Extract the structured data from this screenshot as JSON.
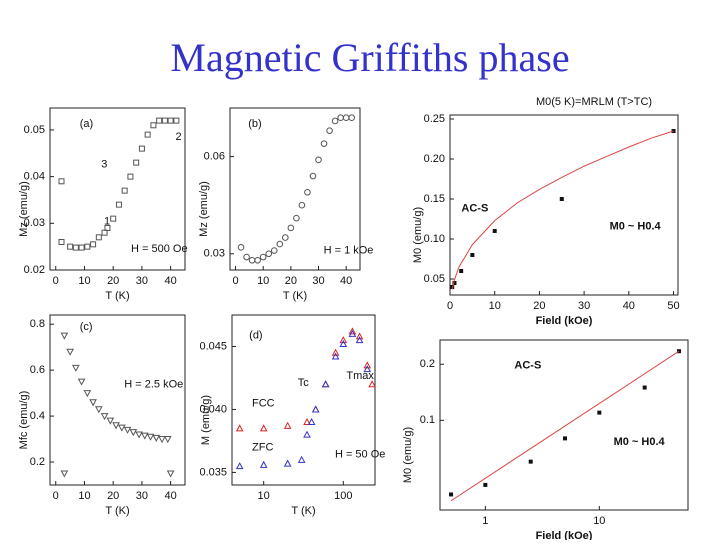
{
  "title": "Magnetic Griffiths phase",
  "chart_data": [
    {
      "type": "scatter",
      "xlabel": "T (K)",
      "ylabel": "Mz (emu/g)",
      "xlim": [
        -2,
        45
      ],
      "xticks": [
        0,
        10,
        20,
        30,
        40
      ],
      "ylim": [
        0.02,
        0.0547
      ],
      "yticks": [
        0.02,
        0.03,
        0.04,
        0.05
      ],
      "annotations": [
        "(a)",
        "1",
        "2",
        "3",
        "H = 500 Oe"
      ],
      "series": [
        {
          "marker": "square",
          "color": "#555555",
          "x": [
            2,
            2,
            5,
            7,
            9,
            11,
            13,
            15,
            17,
            18,
            20,
            22,
            24,
            26,
            28,
            30,
            32,
            34,
            36,
            38,
            40,
            42
          ],
          "values": [
            0.039,
            0.026,
            0.025,
            0.0248,
            0.0248,
            0.025,
            0.0255,
            0.027,
            0.028,
            0.029,
            0.031,
            0.034,
            0.037,
            0.04,
            0.043,
            0.046,
            0.049,
            0.051,
            0.052,
            0.052,
            0.052,
            0.052
          ]
        }
      ]
    },
    {
      "type": "scatter",
      "xlabel": "T (K)",
      "ylabel": "Mz (emu/g)",
      "xlim": [
        -2,
        45
      ],
      "xticks": [
        0,
        10,
        20,
        30,
        40
      ],
      "ylim": [
        0.025,
        0.075
      ],
      "yticks": [
        0.03,
        0.06
      ],
      "annotations": [
        "(b)",
        "H = 1 kOe"
      ],
      "series": [
        {
          "marker": "circle",
          "color": "#555555",
          "x": [
            2,
            4,
            6,
            8,
            10,
            12,
            14,
            16,
            18,
            20,
            22,
            24,
            26,
            28,
            30,
            32,
            34,
            36,
            38,
            40,
            42
          ],
          "values": [
            0.032,
            0.029,
            0.028,
            0.028,
            0.029,
            0.03,
            0.031,
            0.033,
            0.035,
            0.038,
            0.041,
            0.045,
            0.049,
            0.054,
            0.059,
            0.064,
            0.068,
            0.071,
            0.072,
            0.072,
            0.072
          ]
        }
      ]
    },
    {
      "type": "scatter",
      "xlabel": "T (K)",
      "ylabel": "Mfc (emu/g)",
      "xlim": [
        -2,
        45
      ],
      "xticks": [
        0,
        10,
        20,
        30,
        40
      ],
      "ylim": [
        0.1,
        0.84
      ],
      "yticks": [
        0.2,
        0.4,
        0.6,
        0.8
      ],
      "annotations": [
        "(c)",
        "H = 2.5 kOe"
      ],
      "series": [
        {
          "marker": "triangle-down",
          "color": "#555555",
          "x": [
            3,
            3,
            5,
            7,
            9,
            11,
            13,
            15,
            17,
            19,
            21,
            23,
            25,
            27,
            29,
            31,
            33,
            35,
            37,
            39,
            40
          ],
          "values": [
            0.75,
            0.15,
            0.68,
            0.61,
            0.55,
            0.5,
            0.46,
            0.43,
            0.4,
            0.38,
            0.36,
            0.35,
            0.34,
            0.33,
            0.32,
            0.315,
            0.31,
            0.305,
            0.3,
            0.3,
            0.15
          ]
        }
      ]
    },
    {
      "type": "scatter",
      "xlabel": "T (K)",
      "ylabel": "M (emu/g)",
      "xscale": "log",
      "xlim": [
        4,
        250
      ],
      "xticks": [
        10,
        100
      ],
      "ylim": [
        0.034,
        0.0475
      ],
      "yticks": [
        {
          "value": 0.035,
          "label": "0.035"
        },
        {
          "value": 0.04,
          "label": "0.040"
        },
        {
          "value": 0.045,
          "label": "0.045"
        }
      ],
      "annotations": [
        "(d)",
        "FCC",
        "ZFC",
        "Tc",
        "Tmax",
        "H = 50 Oe"
      ],
      "series": [
        {
          "marker": "triangle",
          "color": "#dd2222",
          "x": [
            5,
            10,
            20,
            35,
            45,
            60,
            80,
            100,
            130,
            160,
            200,
            230
          ],
          "values": [
            0.0385,
            0.0385,
            0.0387,
            0.039,
            0.04,
            0.042,
            0.0445,
            0.0455,
            0.0462,
            0.0458,
            0.0435,
            0.042
          ]
        },
        {
          "marker": "triangle",
          "color": "#3333cc",
          "x": [
            5,
            10,
            20,
            30,
            35,
            40,
            45,
            60,
            80,
            100,
            130,
            160,
            200
          ],
          "values": [
            0.0355,
            0.0356,
            0.0357,
            0.036,
            0.038,
            0.039,
            0.04,
            0.042,
            0.0442,
            0.0452,
            0.046,
            0.0455,
            0.0432
          ]
        }
      ]
    },
    {
      "type": "scatter",
      "title": "M0(5 K)=MRLM (T>TC)",
      "xlabel": "Field (kOe)",
      "ylabel": "M0 (emu/g)",
      "xlim": [
        0,
        51
      ],
      "xticks": [
        0,
        10,
        20,
        30,
        40,
        50
      ],
      "ylim": [
        0.03,
        0.255
      ],
      "yticks": [
        0.05,
        {
          "value": 0.1,
          "label": "0.10"
        },
        0.15,
        {
          "value": 0.2,
          "label": "0.20"
        },
        0.25
      ],
      "annotations": [
        "AC-S",
        "M0 ~ H0.4"
      ],
      "series": [
        {
          "marker": "dot",
          "color": "#111111",
          "x": [
            0.5,
            1,
            2.5,
            5,
            10,
            25,
            50
          ],
          "values": [
            0.04,
            0.045,
            0.06,
            0.08,
            0.11,
            0.15,
            0.235
          ]
        },
        {
          "marker": "line",
          "color": "#dd4444",
          "x": [
            0.5,
            1,
            2,
            5,
            10,
            15,
            20,
            25,
            30,
            35,
            40,
            45,
            50
          ],
          "values": [
            0.037,
            0.049,
            0.065,
            0.093,
            0.123,
            0.145,
            0.162,
            0.177,
            0.191,
            0.203,
            0.215,
            0.226,
            0.235
          ]
        }
      ]
    },
    {
      "type": "scatter",
      "xlabel": "Field (kOe)",
      "ylabel": "M0 (emu/g)",
      "xscale": "log",
      "yscale": "log",
      "xlim": [
        0.4,
        60
      ],
      "xticks": [
        1,
        10
      ],
      "ylim": [
        0.033,
        0.27
      ],
      "yticks": [
        0.1,
        0.2
      ],
      "annotations": [
        "AC-S",
        "M0 ~ H0.4"
      ],
      "series": [
        {
          "marker": "dot",
          "color": "#111111",
          "x": [
            0.5,
            1,
            2.5,
            5,
            10,
            25,
            50
          ],
          "values": [
            0.04,
            0.045,
            0.06,
            0.08,
            0.11,
            0.15,
            0.235
          ]
        },
        {
          "marker": "line",
          "color": "#dd4444",
          "x": [
            0.5,
            50
          ],
          "values": [
            0.037,
            0.235
          ]
        }
      ]
    }
  ]
}
